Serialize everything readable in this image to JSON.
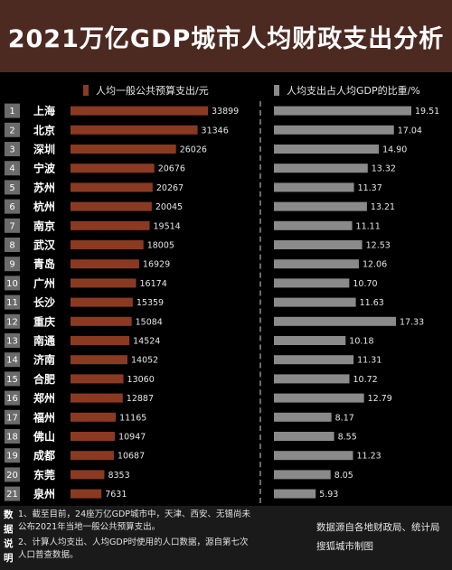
{
  "title": "2021万亿GDP城市人均财政支出分析",
  "legend_left": "人均一般公共预算支出/元",
  "legend_right": "人均支出占人均GDP的比重/%",
  "chart_data": [
    {
      "type": "bar",
      "orientation": "horizontal",
      "series_name": "人均一般公共预算支出/元",
      "color": "#8b3a22",
      "ranks": [
        "1",
        "2",
        "3",
        "4",
        "5",
        "6",
        "7",
        "8",
        "9",
        "10",
        "11",
        "12",
        "13",
        "14",
        "15",
        "16",
        "17",
        "18",
        "19",
        "20",
        "21"
      ],
      "categories": [
        "上海",
        "北京",
        "深圳",
        "宁波",
        "苏州",
        "杭州",
        "南京",
        "武汉",
        "青岛",
        "广州",
        "长沙",
        "重庆",
        "南通",
        "济南",
        "合肥",
        "郑州",
        "福州",
        "佛山",
        "成都",
        "东莞",
        "泉州"
      ],
      "values": [
        33899,
        31346,
        26026,
        20676,
        20267,
        20045,
        19514,
        18005,
        16929,
        16174,
        15359,
        15084,
        14524,
        14052,
        13060,
        12887,
        11165,
        10947,
        10687,
        8353,
        7631
      ]
    },
    {
      "type": "bar",
      "orientation": "horizontal",
      "series_name": "人均支出占人均GDP的比重/%",
      "color": "#8a8a8a",
      "categories": [
        "上海",
        "北京",
        "深圳",
        "宁波",
        "苏州",
        "杭州",
        "南京",
        "武汉",
        "青岛",
        "广州",
        "长沙",
        "重庆",
        "南通",
        "济南",
        "合肥",
        "郑州",
        "福州",
        "佛山",
        "成都",
        "东莞",
        "泉州"
      ],
      "values": [
        "19.51",
        "17.04",
        "14.90",
        "13.32",
        "11.37",
        "13.21",
        "11.11",
        "12.53",
        "12.06",
        "10.70",
        "11.63",
        "17.33",
        "10.18",
        "11.31",
        "10.72",
        "12.79",
        "8.17",
        "8.55",
        "11.23",
        "8.05",
        "5.93"
      ]
    }
  ],
  "notes": {
    "label_chars": [
      "数",
      "据",
      "说",
      "明"
    ],
    "note1": "1、截至目前，24座万亿GDP城市中，天津、西安、无锡尚未公布2021年当地一般公共预算支出。",
    "note2": "2、计算人均支出、人均GDP时使用的人口数据，源自第七次人口普查数据。"
  },
  "source": {
    "line1": "数据源自各地财政局、统计局",
    "line2": "搜狐城市制图"
  }
}
